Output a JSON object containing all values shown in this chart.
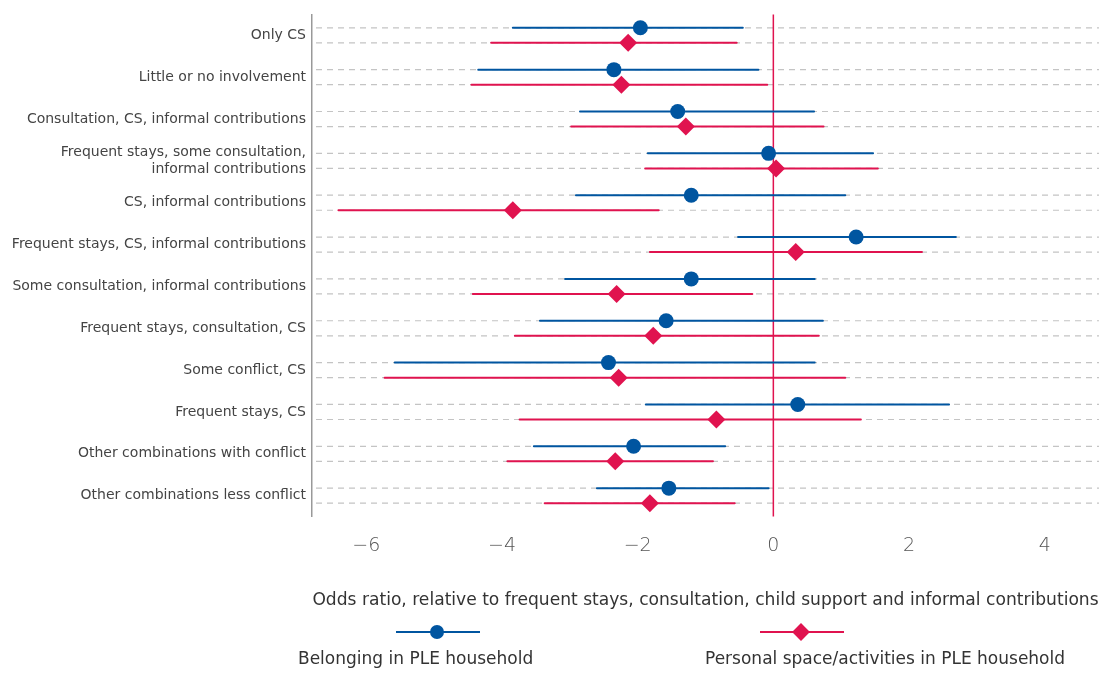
{
  "chart_data": {
    "type": "scatter",
    "orientation": "horizontal",
    "xlabel": "Odds ratio, relative to frequent stays, consultation, child support and informal contributions",
    "categories": [
      "Only CS",
      "Little or no involvement",
      "Consultation, CS, informal contributions",
      "Frequent stays, some consultation, informal contributions",
      "CS, informal contributions",
      "Frequent stays, CS, informal contributions",
      "Some consultation, informal contributions",
      "Frequent stays, consultation, CS",
      "Some conflict, CS",
      "Frequent stays, CS",
      "Other combinations with conflict",
      "Other combinations less conflict"
    ],
    "series": [
      {
        "name": "Belonging in PLE household",
        "color": "#0055a0",
        "marker": "circle",
        "values": [
          -1.96,
          -2.35,
          -1.41,
          -0.07,
          -1.21,
          1.22,
          -1.21,
          -1.58,
          -2.43,
          0.36,
          -2.06,
          -1.54
        ],
        "errors": [
          [
            -3.84,
            -0.45
          ],
          [
            -4.35,
            -0.22
          ],
          [
            -2.85,
            0.6
          ],
          [
            -1.85,
            1.47
          ],
          [
            -2.91,
            1.06
          ],
          [
            -0.52,
            2.69
          ],
          [
            -3.07,
            0.61
          ],
          [
            -3.44,
            0.73
          ],
          [
            -5.58,
            0.61
          ],
          [
            -1.88,
            2.59
          ],
          [
            -3.53,
            -0.71
          ],
          [
            -2.6,
            -0.07
          ]
        ]
      },
      {
        "name": "Personal space/activities in PLE household",
        "color": "#e0134f",
        "marker": "diamond",
        "values": [
          -2.14,
          -2.24,
          -1.29,
          0.04,
          -3.84,
          0.33,
          -2.31,
          -1.77,
          -2.28,
          -0.84,
          -2.33,
          -1.82
        ],
        "errors": [
          [
            -4.16,
            -0.54
          ],
          [
            -4.45,
            -0.09
          ],
          [
            -2.98,
            0.74
          ],
          [
            -1.89,
            1.54
          ],
          [
            -6.41,
            -1.69
          ],
          [
            -1.82,
            2.19
          ],
          [
            -4.43,
            -0.31
          ],
          [
            -3.81,
            0.67
          ],
          [
            -5.73,
            1.06
          ],
          [
            -3.74,
            1.29
          ],
          [
            -3.92,
            -0.89
          ],
          [
            -3.37,
            -0.57
          ]
        ]
      }
    ],
    "xlim": [
      -6.8,
      4.8
    ],
    "xticks": [
      -6,
      -4,
      -2,
      0,
      2,
      4
    ],
    "ref_lines": [
      {
        "axis": "x",
        "value": 0,
        "color": "#e0134f"
      }
    ],
    "grid": "y",
    "legend": "bottom"
  }
}
